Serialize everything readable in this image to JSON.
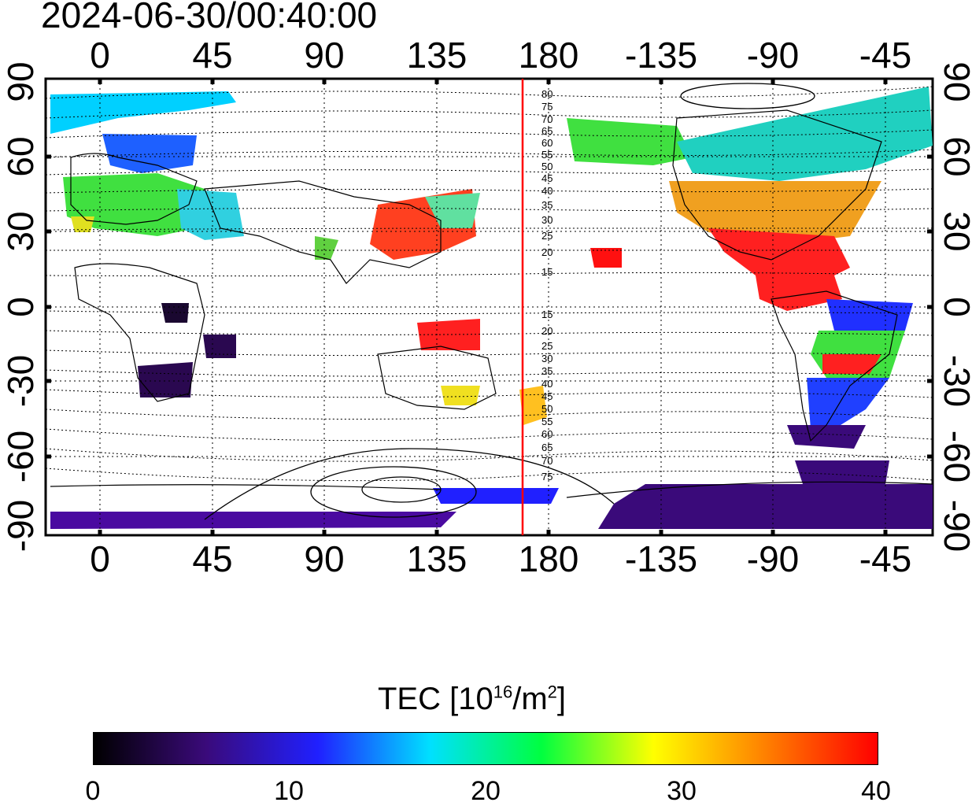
{
  "title": "2024-06-30/00:40:00",
  "map": {
    "top_axis_labels": [
      "0",
      "45",
      "90",
      "135",
      "180",
      "-135",
      "-90",
      "-45"
    ],
    "bottom_axis_labels": [
      "0",
      "45",
      "90",
      "135",
      "180",
      "-135",
      "-90",
      "-45"
    ],
    "left_axis_labels": [
      "90",
      "60",
      "30",
      "0",
      "-30",
      "-60",
      "-90"
    ],
    "right_axis_labels": [
      "90",
      "60",
      "30",
      "0",
      "-30",
      "-60",
      "-90"
    ],
    "contour_labels_north": [
      "80",
      "75",
      "70",
      "65",
      "60",
      "55",
      "50",
      "45",
      "40",
      "35",
      "30",
      "25",
      "20",
      "15"
    ],
    "contour_labels_south": [
      "15",
      "20",
      "25",
      "30",
      "35",
      "40",
      "45",
      "50",
      "55",
      "60",
      "65",
      "70",
      "75"
    ],
    "reference_meridian_color": "#ff0000"
  },
  "colorbar": {
    "title_prefix": "TEC  [10",
    "title_exp1": "16",
    "title_mid": "/m",
    "title_exp2": "2",
    "title_suffix": "]",
    "tick_labels": [
      "0",
      "10",
      "20",
      "30",
      "40"
    ],
    "min": 0,
    "max": 40,
    "colors": [
      "#000000",
      "#3a0a7a",
      "#2020ff",
      "#00e0ff",
      "#00ff40",
      "#ffff00",
      "#ff8000",
      "#ff0000"
    ]
  }
}
